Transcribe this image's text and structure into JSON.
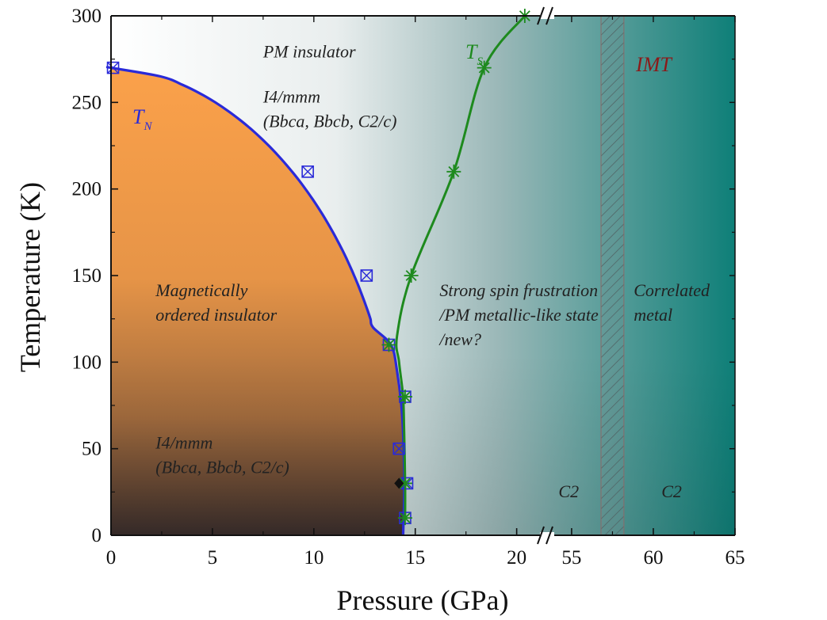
{
  "chart_data": {
    "type": "scatter",
    "title": "",
    "xlabel": "Pressure (GPa)",
    "ylabel": "Temperature (K)",
    "x_ticks": [
      "0",
      "5",
      "10",
      "15",
      "20",
      "55",
      "60",
      "65"
    ],
    "y_ticks": [
      "0",
      "50",
      "100",
      "150",
      "200",
      "250",
      "300"
    ],
    "x_segments": [
      {
        "range": [
          0,
          21.5
        ]
      },
      {
        "range": [
          53.5,
          65
        ]
      }
    ],
    "ylim": [
      0,
      300
    ],
    "grid": false,
    "series": [
      {
        "name": "T_N",
        "label_main": "T",
        "label_sub": "N",
        "color": "#2a2ad8",
        "marker": "boxed-x",
        "x": [
          0.1,
          9.7,
          12.6,
          13.7,
          14.5,
          14.2,
          14.6,
          14.5
        ],
        "y": [
          270,
          210,
          150,
          110,
          80,
          50,
          30,
          10
        ]
      },
      {
        "name": "T_S",
        "label_main": "T",
        "label_sub": "S",
        "color": "#1e8a1e",
        "marker": "asterisk",
        "x": [
          20.4,
          18.4,
          16.9,
          14.8,
          13.7,
          14.5,
          14.5,
          14.5
        ],
        "y": [
          300,
          270,
          210,
          150,
          110,
          80,
          30,
          10
        ]
      }
    ],
    "extra_point": {
      "x": 14.2,
      "y": 30,
      "color": "#111111",
      "marker": "diamond"
    },
    "imt_band": {
      "x": [
        56.8,
        58.2
      ],
      "label": "IMT",
      "label_color": "#8b1a1a"
    },
    "annotations": [
      {
        "id": "pm-insulator",
        "lines": [
          "PM insulator"
        ],
        "x": 7.5,
        "y": 276
      },
      {
        "id": "phase-upper",
        "lines": [
          "I4/mmm",
          "(Bbca, Bbcb, C2/c)"
        ],
        "x": 7.5,
        "y": 250
      },
      {
        "id": "mag-ordered",
        "lines": [
          "Magnetically",
          "ordered insulator"
        ],
        "x": 2.2,
        "y": 138
      },
      {
        "id": "phase-lower",
        "lines": [
          "I4/mmm",
          "(Bbca, Bbcb, C2/c)"
        ],
        "x": 2.2,
        "y": 50
      },
      {
        "id": "frustration",
        "lines": [
          "Strong spin frustration",
          "/PM metallic-like state",
          "/new?"
        ],
        "x": 16.2,
        "y": 138
      },
      {
        "id": "correlated-metal",
        "lines": [
          "Correlated",
          "metal"
        ],
        "x": 58.8,
        "y": 138
      },
      {
        "id": "c2-left",
        "lines": [
          "C2"
        ],
        "x": 54.2,
        "y": 22
      },
      {
        "id": "c2-right",
        "lines": [
          "C2"
        ],
        "x": 60.5,
        "y": 22
      }
    ]
  }
}
